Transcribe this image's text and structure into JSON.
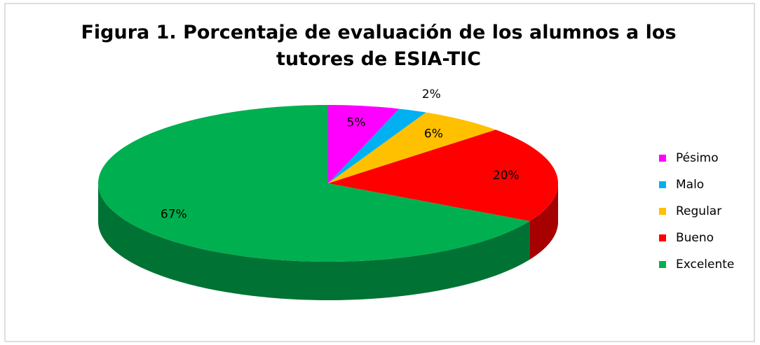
{
  "chart_data": {
    "type": "pie3d",
    "title": "Figura 1. Porcentaje de evaluación de los alumnos a los tutores de ESIA-TIC",
    "categories": [
      "Pésimo",
      "Malo",
      "Regular",
      "Bueno",
      "Excelente"
    ],
    "values": [
      5,
      2,
      6,
      20,
      67
    ],
    "value_labels": [
      "5%",
      "2%",
      "6%",
      "20%",
      "67%"
    ],
    "colors": [
      "#ff00ff",
      "#00b0f0",
      "#ffc000",
      "#ff0000",
      "#00b050"
    ],
    "legend": "right"
  }
}
